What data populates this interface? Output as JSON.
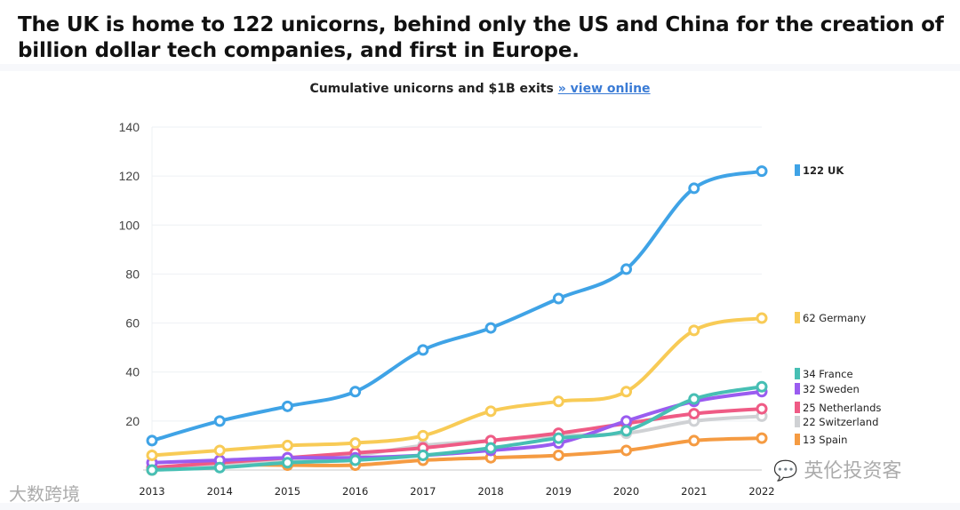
{
  "headline": "The UK is home to 122 unicorns, behind only the US and China for the creation of billion dollar tech companies, and first in Europe.",
  "chart_data": {
    "type": "line",
    "title": "Cumulative unicorns and $1B exits",
    "title_link": "» view online",
    "xlabel": "",
    "ylabel": "",
    "x": [
      2013,
      2014,
      2015,
      2016,
      2017,
      2018,
      2019,
      2020,
      2021,
      2022
    ],
    "ylim": [
      0,
      140
    ],
    "yticks": [
      20,
      40,
      60,
      80,
      100,
      120,
      140
    ],
    "grid": true,
    "legend_placement": "right",
    "series": [
      {
        "name": "UK",
        "label": "122 UK",
        "color": "#3fa3e6",
        "values": [
          12,
          20,
          26,
          32,
          49,
          58,
          70,
          82,
          115,
          122
        ]
      },
      {
        "name": "Germany",
        "label": "62 Germany",
        "color": "#f8cb56",
        "values": [
          6,
          8,
          10,
          11,
          14,
          24,
          28,
          32,
          57,
          62
        ]
      },
      {
        "name": "France",
        "label": "34 France",
        "color": "#47bfb4",
        "values": [
          0,
          1,
          3,
          4,
          6,
          9,
          13,
          16,
          29,
          34
        ]
      },
      {
        "name": "Sweden",
        "label": "32 Sweden",
        "color": "#9a5cf0",
        "values": [
          3,
          4,
          5,
          5,
          6,
          8,
          11,
          20,
          28,
          32
        ]
      },
      {
        "name": "Netherlands",
        "label": "25 Netherlands",
        "color": "#ef5b85",
        "values": [
          1,
          3,
          5,
          7,
          9,
          12,
          15,
          19,
          23,
          25
        ]
      },
      {
        "name": "Switzerland",
        "label": "22 Switzerland",
        "color": "#cfd1d4",
        "values": [
          1,
          2,
          4,
          6,
          10,
          12,
          14,
          15,
          20,
          22
        ]
      },
      {
        "name": "Spain",
        "label": "13 Spain",
        "color": "#f59b42",
        "values": [
          0,
          2,
          2,
          2,
          4,
          5,
          6,
          8,
          12,
          13
        ]
      }
    ]
  },
  "watermarks": {
    "left": "大数跨境",
    "right": "英伦投资客"
  }
}
